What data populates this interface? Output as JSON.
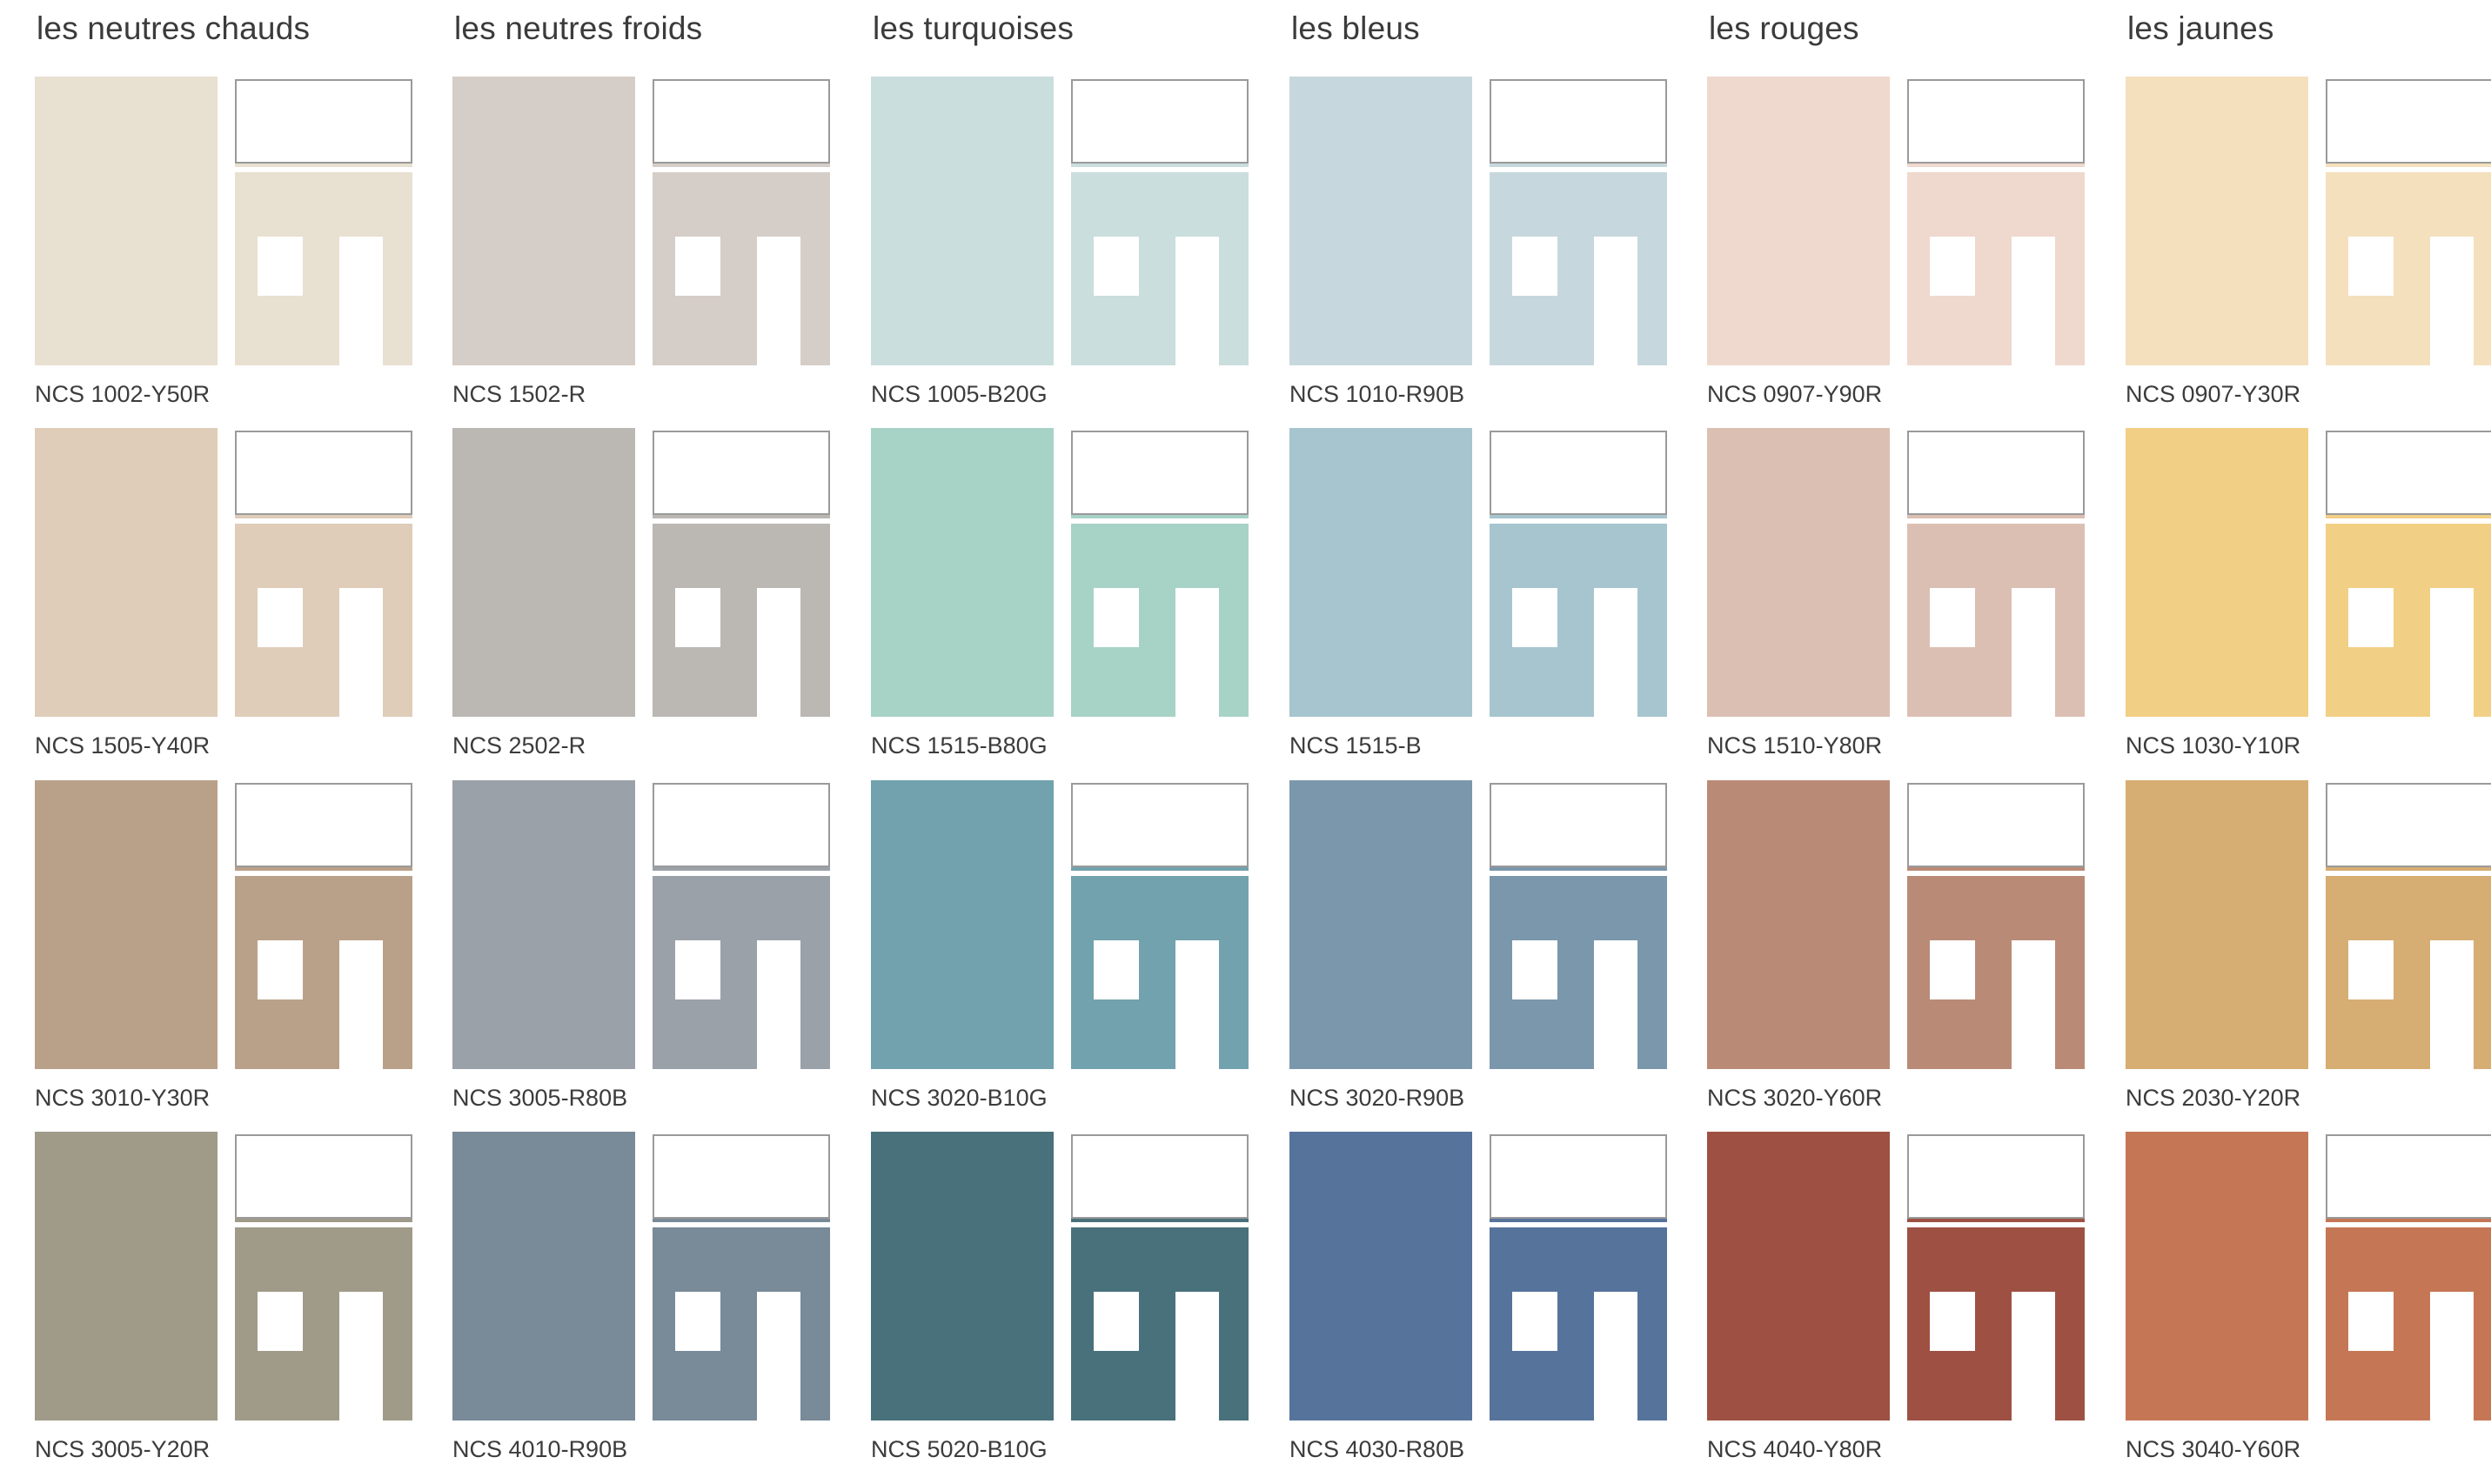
{
  "page": {
    "background": "#ffffff",
    "text_color": "#3a3a3a"
  },
  "columns": [
    {
      "title": "les neutres chauds",
      "swatches": [
        {
          "code": "NCS 1002-Y50R",
          "color": "#e8e0d1"
        },
        {
          "code": "NCS 1505-Y40R",
          "color": "#dfcdb9"
        },
        {
          "code": "NCS 3010-Y30R",
          "color": "#b9a189"
        },
        {
          "code": "NCS 3005-Y20R",
          "color": "#a09a89"
        }
      ]
    },
    {
      "title": "les neutres froids",
      "swatches": [
        {
          "code": "NCS 1502-R",
          "color": "#d5cdc7"
        },
        {
          "code": "NCS 2502-R",
          "color": "#bbb7b3"
        },
        {
          "code": "NCS 3005-R80B",
          "color": "#9ba1a9"
        },
        {
          "code": "NCS 4010-R90B",
          "color": "#798a98"
        }
      ]
    },
    {
      "title": "les turquoises",
      "swatches": [
        {
          "code": "NCS 1005-B20G",
          "color": "#c9dedd"
        },
        {
          "code": "NCS 1515-B80G",
          "color": "#a7d3c6"
        },
        {
          "code": "NCS 3020-B10G",
          "color": "#72a2ad"
        },
        {
          "code": "NCS 5020-B10G",
          "color": "#48717c"
        }
      ]
    },
    {
      "title": "les bleus",
      "swatches": [
        {
          "code": "NCS 1010-R90B",
          "color": "#c6d8dd"
        },
        {
          "code": "NCS 1515-B",
          "color": "#a6c5cf"
        },
        {
          "code": "NCS 3020-R90B",
          "color": "#7b97ab"
        },
        {
          "code": "NCS 4030-R80B",
          "color": "#56739c"
        }
      ]
    },
    {
      "title": "les rouges",
      "swatches": [
        {
          "code": "NCS 0907-Y90R",
          "color": "#efd8cd"
        },
        {
          "code": "NCS 1510-Y80R",
          "color": "#dcbfb3"
        },
        {
          "code": "NCS 3020-Y60R",
          "color": "#b98b77"
        },
        {
          "code": "NCS 4040-Y80R",
          "color": "#9e5143"
        }
      ]
    },
    {
      "title": "les jaunes",
      "swatches": [
        {
          "code": "NCS 0907-Y30R",
          "color": "#f4e0bd"
        },
        {
          "code": "NCS 1030-Y10R",
          "color": "#f1cf84"
        },
        {
          "code": "NCS 2030-Y20R",
          "color": "#d6ad72"
        },
        {
          "code": "NCS 3040-Y60R",
          "color": "#c57755"
        }
      ]
    }
  ]
}
